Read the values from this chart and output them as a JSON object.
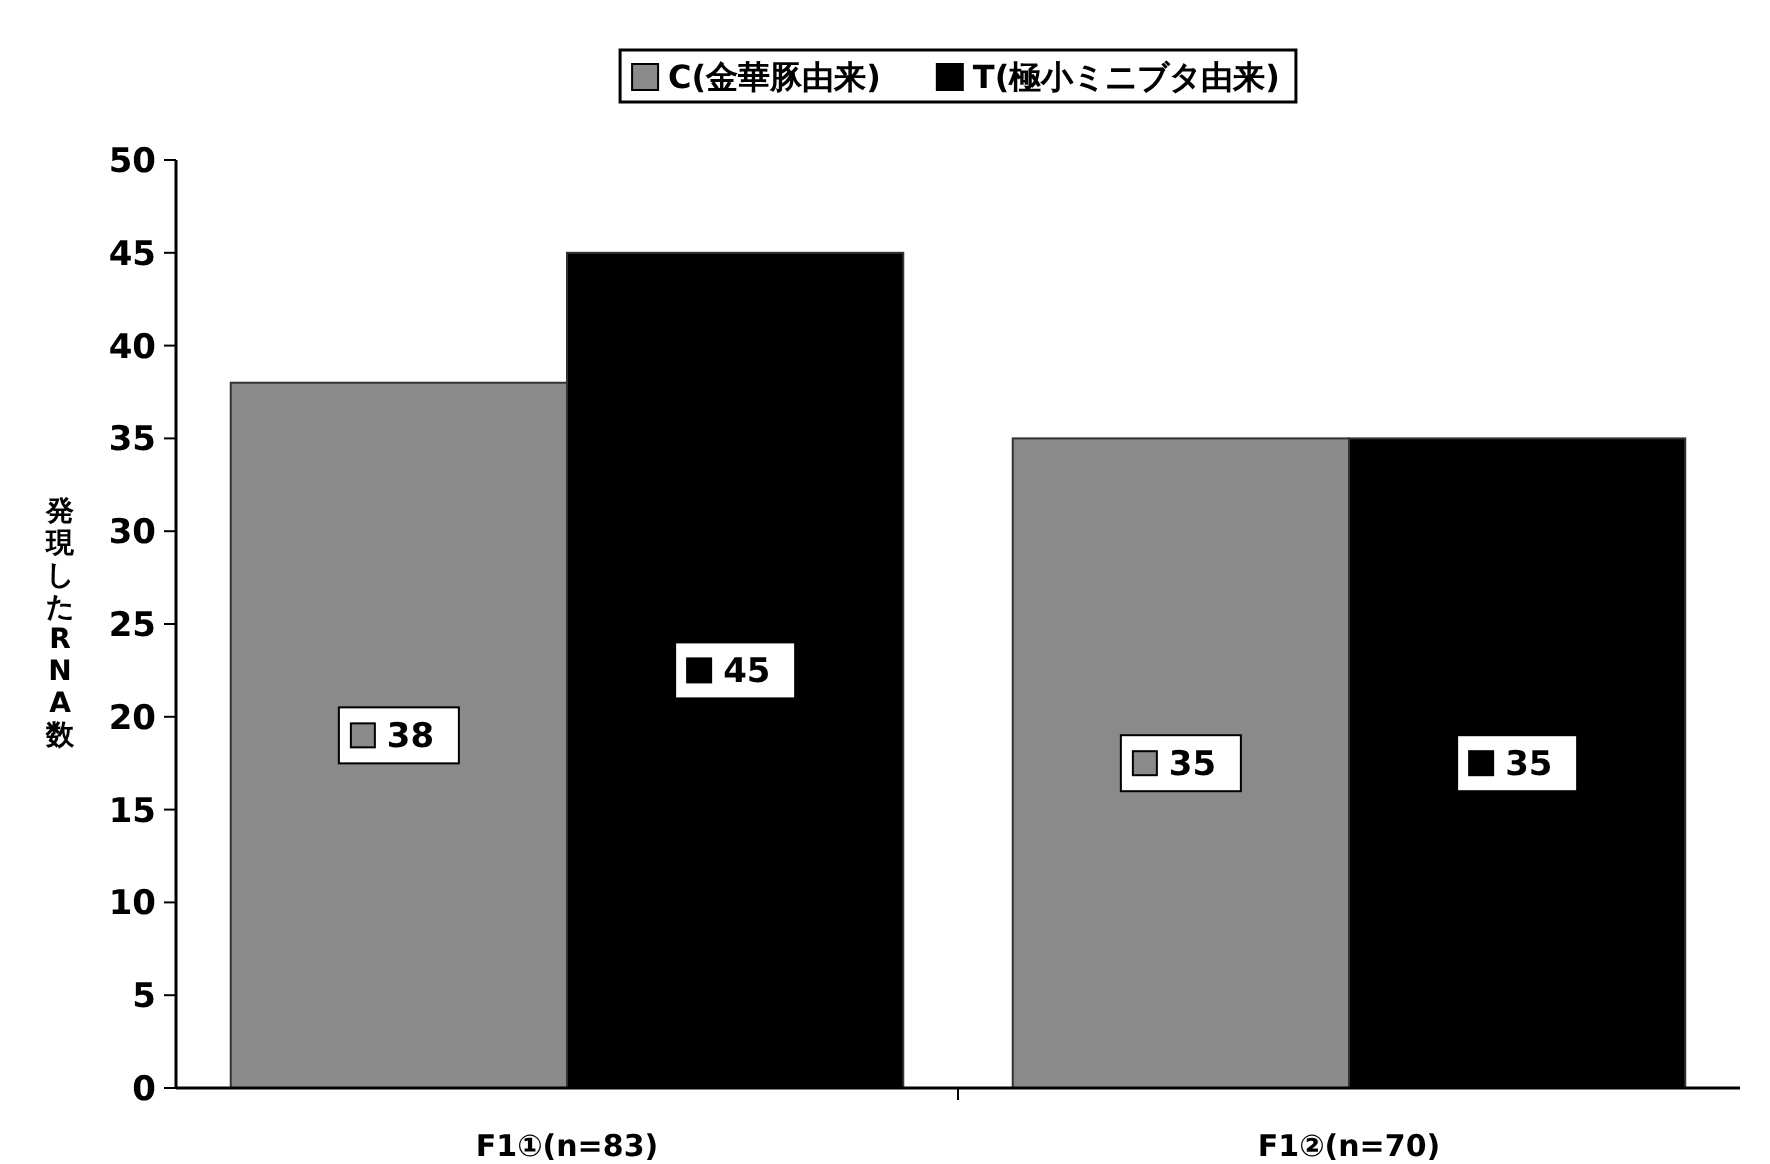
{
  "chart_data": {
    "type": "bar",
    "ylabel": "発現したRNA数",
    "categories": [
      "F1①(n=83)",
      "F1②(n=70)"
    ],
    "series": [
      {
        "name": "C(金華豚由来)",
        "color": "#8a8a8a",
        "values": [
          38,
          35
        ]
      },
      {
        "name": "T(極小ミニブタ由来)",
        "color": "#000000",
        "values": [
          45,
          35
        ]
      }
    ],
    "ylim": [
      0,
      50
    ],
    "yticks": [
      0,
      5,
      10,
      15,
      20,
      25,
      30,
      35,
      40,
      45,
      50
    ],
    "data_labels": true,
    "legend": "top",
    "grid": false
  }
}
